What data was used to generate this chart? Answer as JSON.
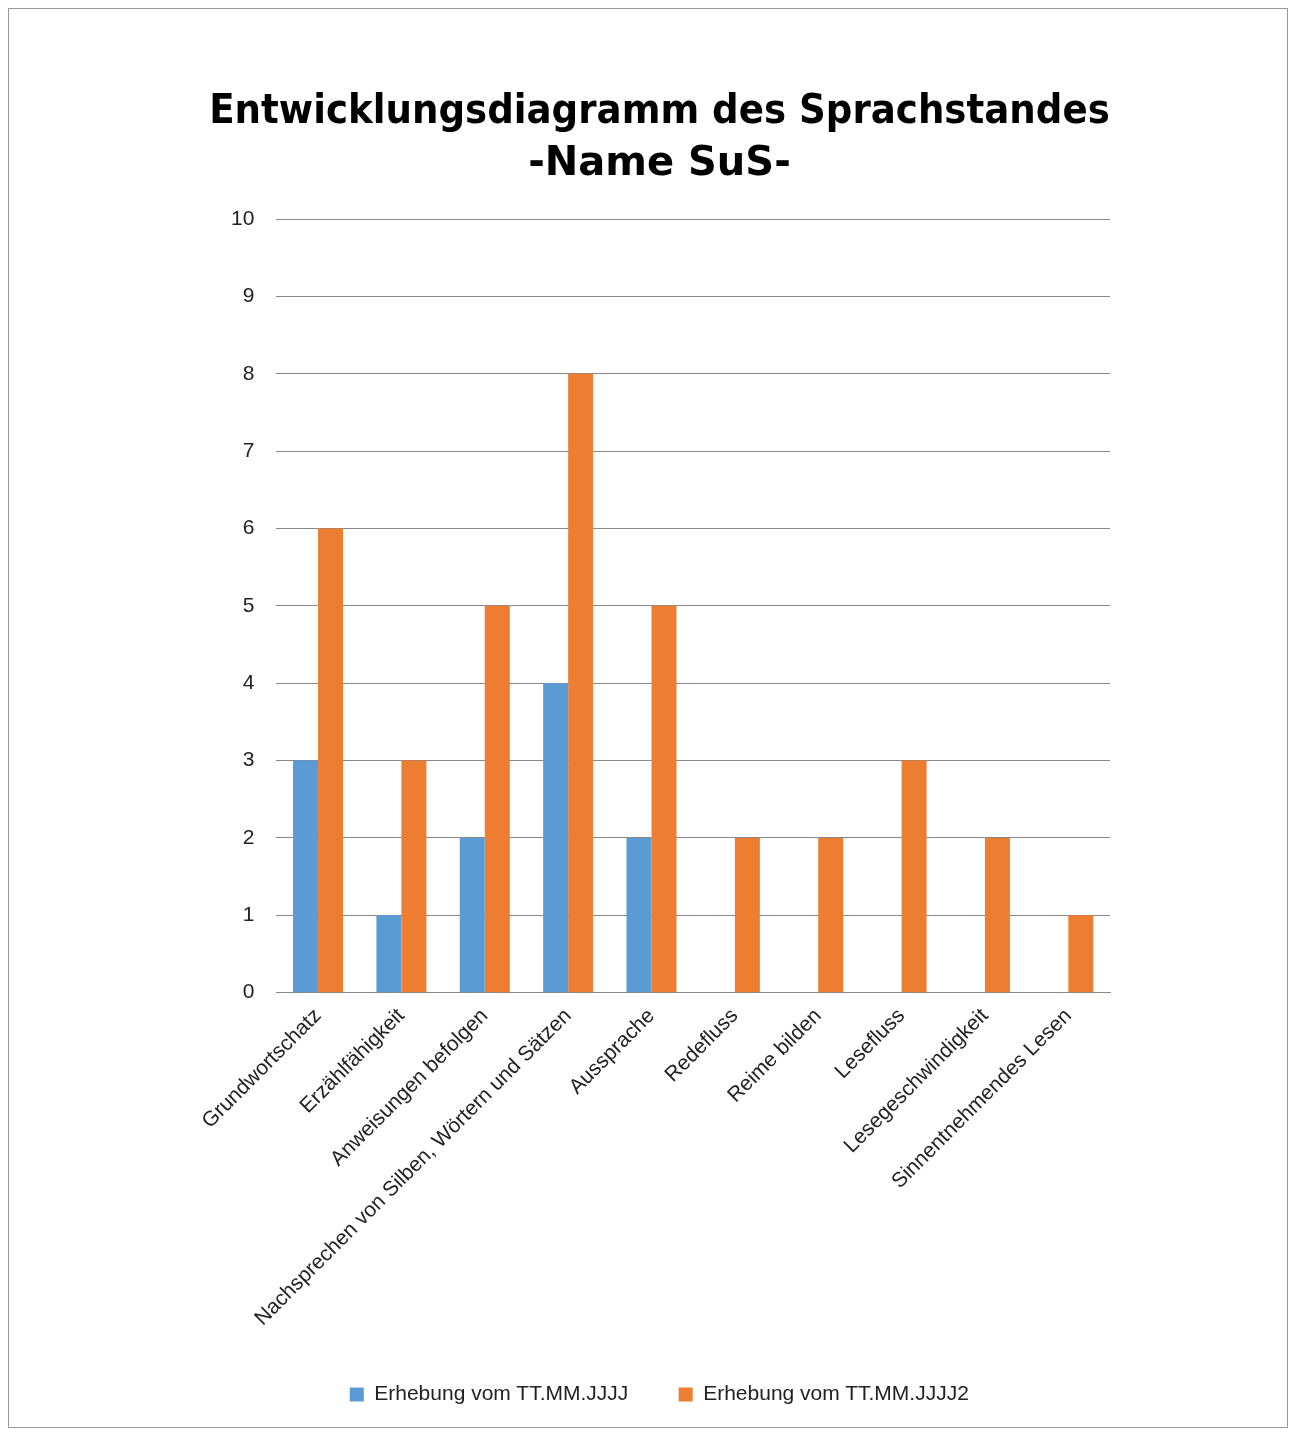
{
  "chart_data": {
    "type": "bar",
    "title": "Entwicklungsdiagramm des Sprachstandes",
    "subtitle": "-Name SuS-",
    "categories": [
      "Grundwortschatz",
      "Erzählfähigkeit",
      "Anweisungen befolgen",
      "Nachsprechen von Silben, Wörtern und Sätzen",
      "Aussprache",
      "Redefluss",
      "Reime bilden",
      "Lesefluss",
      "Lesegeschwindigkeit",
      "Sinnentnehmendes Lesen"
    ],
    "series": [
      {
        "name": "Erhebung vom TT.MM.JJJJ",
        "color": "#5b9bd5",
        "values": [
          3,
          1,
          2,
          4,
          2,
          0,
          0,
          0,
          0,
          0
        ]
      },
      {
        "name": "Erhebung vom TT.MM.JJJJ2",
        "color": "#ed7d31",
        "values": [
          6,
          3,
          5,
          8,
          5,
          2,
          2,
          3,
          2,
          1
        ]
      }
    ],
    "ylim": [
      0,
      10
    ],
    "yticks": [
      0,
      1,
      2,
      3,
      4,
      5,
      6,
      7,
      8,
      9,
      10
    ],
    "grid": "y",
    "legend": "bottom"
  }
}
